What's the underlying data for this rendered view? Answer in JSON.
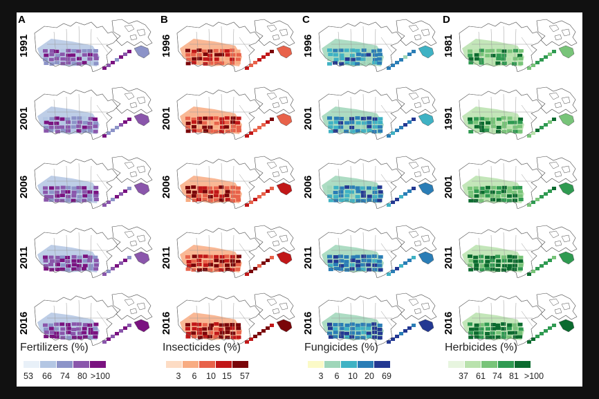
{
  "panels": [
    {
      "letter": "A",
      "title": "Fertilizers (%)",
      "years": [
        "1991",
        "2001",
        "2006",
        "2011",
        "2016"
      ],
      "intensity": [
        0.55,
        0.6,
        0.65,
        0.7,
        0.8
      ],
      "legend_colors": [
        "#e8f0f8",
        "#b3c6e3",
        "#8c93c8",
        "#8a56ab",
        "#7a1280"
      ],
      "ticks": [
        "53",
        "66",
        "74",
        "80",
        ">100"
      ]
    },
    {
      "letter": "B",
      "title": "Insecticides (%)",
      "years": [
        "1996",
        "2001",
        "2006",
        "2011",
        "2016"
      ],
      "intensity": [
        0.55,
        0.55,
        0.6,
        0.75,
        0.85
      ],
      "legend_colors": [
        "#fddcc4",
        "#f8ac82",
        "#e8624a",
        "#c11718",
        "#7a0509"
      ],
      "ticks": [
        "3",
        "6",
        "10",
        "15",
        "57"
      ]
    },
    {
      "letter": "C",
      "title": "Fungicides (%)",
      "years": [
        "1996",
        "2001",
        "2006",
        "2011",
        "2016"
      ],
      "intensity": [
        0.5,
        0.55,
        0.6,
        0.7,
        0.85
      ],
      "legend_colors": [
        "#fbfac7",
        "#9fd6b9",
        "#3fb2c4",
        "#2a7db6",
        "#233892"
      ],
      "ticks": [
        "3",
        "6",
        "10",
        "20",
        "69"
      ]
    },
    {
      "letter": "D",
      "title": "Herbicides (%)",
      "years": [
        "1981",
        "1991",
        "2001",
        "2011",
        "2016"
      ],
      "intensity": [
        0.45,
        0.55,
        0.65,
        0.75,
        0.85
      ],
      "legend_colors": [
        "#e7f5df",
        "#b9e2ad",
        "#78c479",
        "#2f9a51",
        "#0b6b2f"
      ],
      "ticks": [
        "37",
        "61",
        "74",
        "81",
        ">100"
      ]
    }
  ]
}
